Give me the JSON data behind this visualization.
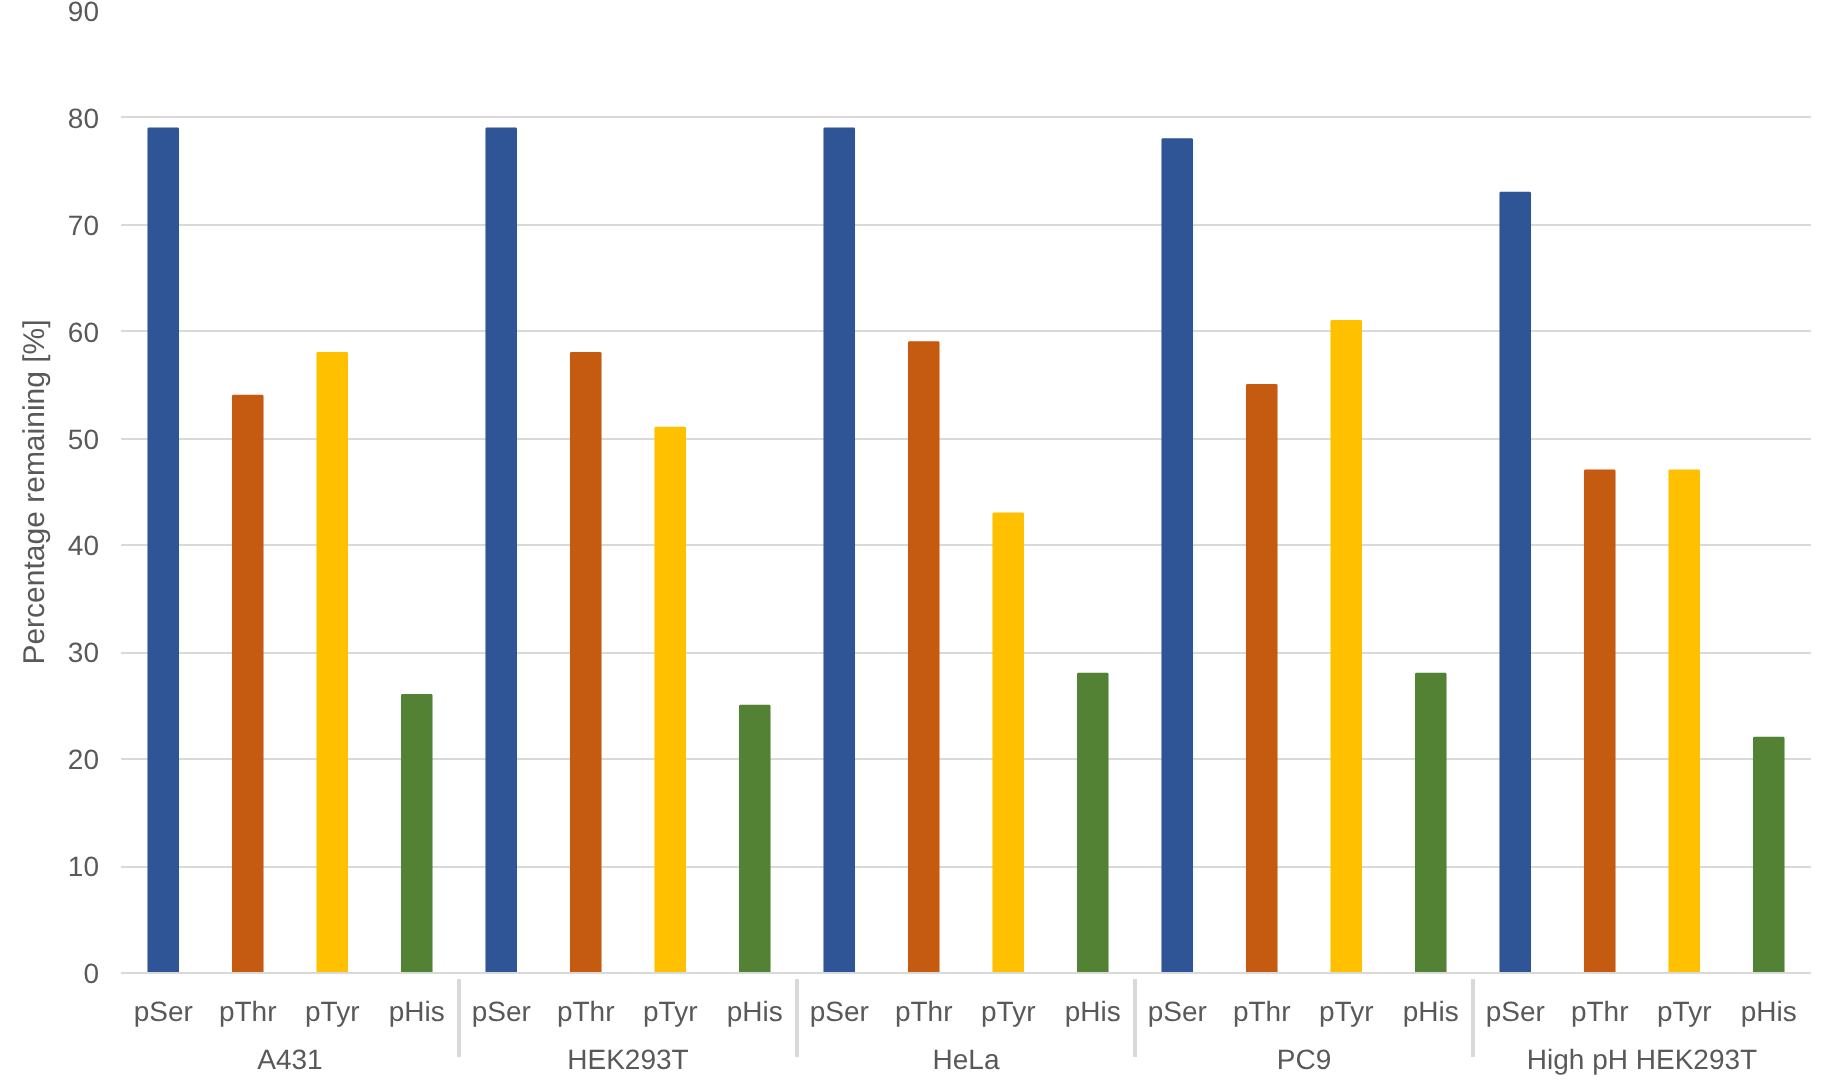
{
  "chart_data": {
    "type": "bar",
    "ylabel": "Percentage remaining [%]",
    "categories": [
      "A431",
      "HEK293T",
      "HeLa",
      "PC9",
      "High pH HEK293T"
    ],
    "series": [
      {
        "name": "pSer",
        "color": "#2f5597",
        "values": [
          79,
          79,
          79,
          78,
          73
        ]
      },
      {
        "name": "pThr",
        "color": "#c55a11",
        "values": [
          54,
          58,
          59,
          55,
          47
        ]
      },
      {
        "name": "pTyr",
        "color": "#ffc000",
        "values": [
          58,
          51,
          43,
          61,
          47
        ]
      },
      {
        "name": "pHis",
        "color": "#548235",
        "values": [
          26,
          25,
          28,
          28,
          22
        ]
      }
    ],
    "ylim": [
      0,
      90
    ],
    "yticks": [
      0,
      10,
      20,
      30,
      40,
      50,
      60,
      70,
      80,
      90
    ],
    "grid": "y",
    "legend": false
  }
}
